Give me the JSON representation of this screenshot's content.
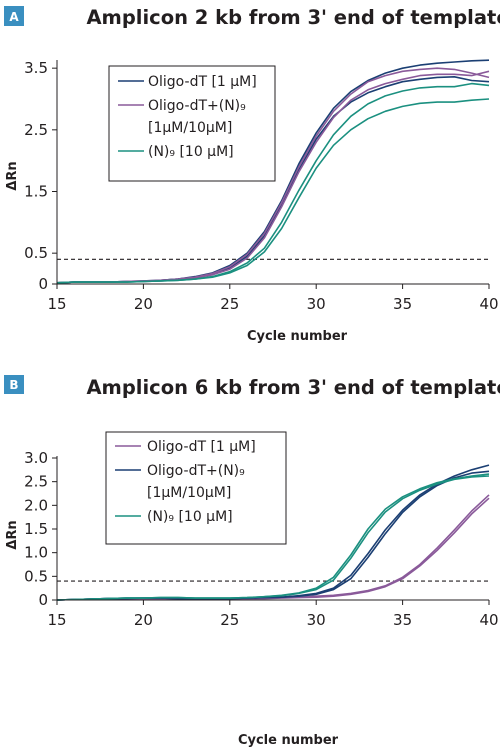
{
  "chart_data": [
    {
      "type": "line",
      "panel_label": "A",
      "title": "Amplicon 2 kb from 3' end of template",
      "xlabel": "Cycle number",
      "ylabel": "ΔRn",
      "xlim": [
        15,
        40
      ],
      "ylim": [
        0,
        3.6
      ],
      "xticks": [
        15,
        20,
        25,
        30,
        35,
        40
      ],
      "yticks": [
        0,
        0.5,
        1.5,
        2.5,
        3.5
      ],
      "yticklabels": [
        "0",
        "0.5",
        "1.5",
        "2.5",
        "3.5"
      ],
      "threshold": 0.4,
      "legend": {
        "position": "top-left",
        "entries": [
          {
            "lines": [
              "Oligo-dT [1 µM]"
            ],
            "color": "#1b3f73"
          },
          {
            "lines": [
              "Oligo-dT+(N)₉",
              "[1µM/10µM]"
            ],
            "color": "#8a5a9a"
          },
          {
            "lines": [
              "(N)₉ [10 µM]"
            ],
            "color": "#1b9080"
          }
        ]
      },
      "series": [
        {
          "name": "Oligo-dT [1 µM]",
          "color": "#1b3f73",
          "x": [
            15,
            16,
            17,
            18,
            19,
            20,
            21,
            22,
            23,
            24,
            25,
            26,
            27,
            28,
            29,
            30,
            31,
            32,
            33,
            34,
            35,
            36,
            37,
            38,
            39,
            40
          ],
          "y": [
            0.02,
            0.03,
            0.03,
            0.03,
            0.04,
            0.05,
            0.06,
            0.08,
            0.12,
            0.18,
            0.3,
            0.5,
            0.85,
            1.35,
            1.95,
            2.45,
            2.85,
            3.12,
            3.3,
            3.42,
            3.5,
            3.55,
            3.58,
            3.6,
            3.62,
            3.63
          ]
        },
        {
          "name": "Oligo-dT [1 µM]",
          "color": "#1b3f73",
          "x": [
            15,
            16,
            17,
            18,
            19,
            20,
            21,
            22,
            23,
            24,
            25,
            26,
            27,
            28,
            29,
            30,
            31,
            32,
            33,
            34,
            35,
            36,
            37,
            38,
            39,
            40
          ],
          "y": [
            0.02,
            0.03,
            0.03,
            0.03,
            0.04,
            0.04,
            0.06,
            0.08,
            0.11,
            0.16,
            0.26,
            0.45,
            0.78,
            1.28,
            1.85,
            2.35,
            2.72,
            2.95,
            3.1,
            3.2,
            3.28,
            3.32,
            3.35,
            3.36,
            3.3,
            3.28
          ]
        },
        {
          "name": "Oligo-dT+(N)₉ [1µM/10µM]",
          "color": "#8a5a9a",
          "x": [
            15,
            16,
            17,
            18,
            19,
            20,
            21,
            22,
            23,
            24,
            25,
            26,
            27,
            28,
            29,
            30,
            31,
            32,
            33,
            34,
            35,
            36,
            37,
            38,
            39,
            40
          ],
          "y": [
            0.02,
            0.03,
            0.03,
            0.03,
            0.04,
            0.04,
            0.05,
            0.07,
            0.1,
            0.15,
            0.24,
            0.42,
            0.75,
            1.25,
            1.82,
            2.3,
            2.7,
            2.98,
            3.15,
            3.25,
            3.32,
            3.38,
            3.4,
            3.4,
            3.38,
            3.45
          ]
        },
        {
          "name": "Oligo-dT+(N)₉ [1µM/10µM]",
          "color": "#8a5a9a",
          "x": [
            15,
            16,
            17,
            18,
            19,
            20,
            21,
            22,
            23,
            24,
            25,
            26,
            27,
            28,
            29,
            30,
            31,
            32,
            33,
            34,
            35,
            36,
            37,
            38,
            39,
            40
          ],
          "y": [
            0.02,
            0.03,
            0.03,
            0.03,
            0.04,
            0.05,
            0.06,
            0.08,
            0.11,
            0.17,
            0.28,
            0.48,
            0.82,
            1.32,
            1.9,
            2.4,
            2.8,
            3.08,
            3.28,
            3.38,
            3.45,
            3.48,
            3.5,
            3.48,
            3.42,
            3.35
          ]
        },
        {
          "name": "(N)₉ [10 µM]",
          "color": "#1b9080",
          "x": [
            15,
            16,
            17,
            18,
            19,
            20,
            21,
            22,
            23,
            24,
            25,
            26,
            27,
            28,
            29,
            30,
            31,
            32,
            33,
            34,
            35,
            36,
            37,
            38,
            39,
            40
          ],
          "y": [
            0.02,
            0.03,
            0.03,
            0.03,
            0.03,
            0.04,
            0.05,
            0.06,
            0.08,
            0.12,
            0.2,
            0.34,
            0.58,
            1.0,
            1.52,
            2.0,
            2.42,
            2.72,
            2.92,
            3.05,
            3.13,
            3.18,
            3.2,
            3.2,
            3.25,
            3.22
          ]
        },
        {
          "name": "(N)₉ [10 µM]",
          "color": "#1b9080",
          "x": [
            15,
            16,
            17,
            18,
            19,
            20,
            21,
            22,
            23,
            24,
            25,
            26,
            27,
            28,
            29,
            30,
            31,
            32,
            33,
            34,
            35,
            36,
            37,
            38,
            39,
            40
          ],
          "y": [
            0.02,
            0.03,
            0.03,
            0.03,
            0.03,
            0.04,
            0.05,
            0.06,
            0.08,
            0.11,
            0.18,
            0.3,
            0.52,
            0.9,
            1.4,
            1.88,
            2.25,
            2.5,
            2.68,
            2.8,
            2.88,
            2.93,
            2.95,
            2.95,
            2.98,
            3.0
          ]
        }
      ]
    },
    {
      "type": "line",
      "panel_label": "B",
      "title": "Amplicon 6 kb from 3' end of template",
      "xlabel": "Cycle number",
      "ylabel": "ΔRn",
      "xlim": [
        15,
        40
      ],
      "ylim": [
        0,
        3.0
      ],
      "xticks": [
        15,
        20,
        25,
        30,
        35,
        40
      ],
      "yticks": [
        0,
        0.5,
        1.0,
        1.5,
        2.0,
        2.5,
        3.0
      ],
      "yticklabels": [
        "0",
        "0.5",
        "1.0",
        "1.5",
        "2.0",
        "2.5",
        "3.0"
      ],
      "threshold": 0.4,
      "legend": {
        "position": "top-left",
        "entries": [
          {
            "lines": [
              "Oligo-dT [1 µM]"
            ],
            "color": "#8a5a9a"
          },
          {
            "lines": [
              "Oligo-dT+(N)₉",
              "[1µM/10µM]"
            ],
            "color": "#1b3f73"
          },
          {
            "lines": [
              "(N)₉ [10 µM]"
            ],
            "color": "#1b9080"
          }
        ]
      },
      "series": [
        {
          "name": "Oligo-dT [1 µM]",
          "color": "#8a5a9a",
          "x": [
            15,
            16,
            17,
            18,
            19,
            20,
            21,
            22,
            23,
            24,
            25,
            26,
            27,
            28,
            29,
            30,
            31,
            32,
            33,
            34,
            35,
            36,
            37,
            38,
            39,
            40
          ],
          "y": [
            0.0,
            0.01,
            0.02,
            0.03,
            0.03,
            0.03,
            0.03,
            0.03,
            0.03,
            0.03,
            0.03,
            0.03,
            0.04,
            0.05,
            0.06,
            0.08,
            0.1,
            0.14,
            0.2,
            0.3,
            0.48,
            0.75,
            1.1,
            1.48,
            1.88,
            2.22
          ]
        },
        {
          "name": "Oligo-dT [1 µM]",
          "color": "#8a5a9a",
          "x": [
            15,
            16,
            17,
            18,
            19,
            20,
            21,
            22,
            23,
            24,
            25,
            26,
            27,
            28,
            29,
            30,
            31,
            32,
            33,
            34,
            35,
            36,
            37,
            38,
            39,
            40
          ],
          "y": [
            0.0,
            0.01,
            0.02,
            0.02,
            0.03,
            0.03,
            0.03,
            0.03,
            0.03,
            0.03,
            0.03,
            0.03,
            0.03,
            0.04,
            0.05,
            0.06,
            0.08,
            0.12,
            0.18,
            0.28,
            0.45,
            0.72,
            1.05,
            1.42,
            1.82,
            2.15
          ]
        },
        {
          "name": "Oligo-dT+(N)₉ [1µM/10µM]",
          "color": "#1b3f73",
          "x": [
            15,
            16,
            17,
            18,
            19,
            20,
            21,
            22,
            23,
            24,
            25,
            26,
            27,
            28,
            29,
            30,
            31,
            32,
            33,
            34,
            35,
            36,
            37,
            38,
            39,
            40
          ],
          "y": [
            0.0,
            0.01,
            0.02,
            0.03,
            0.04,
            0.04,
            0.04,
            0.03,
            0.03,
            0.03,
            0.03,
            0.04,
            0.05,
            0.06,
            0.09,
            0.14,
            0.25,
            0.52,
            0.98,
            1.48,
            1.9,
            2.22,
            2.45,
            2.62,
            2.75,
            2.85
          ]
        },
        {
          "name": "Oligo-dT+(N)₉ [1µM/10µM]",
          "color": "#1b3f73",
          "x": [
            15,
            16,
            17,
            18,
            19,
            20,
            21,
            22,
            23,
            24,
            25,
            26,
            27,
            28,
            29,
            30,
            31,
            32,
            33,
            34,
            35,
            36,
            37,
            38,
            39,
            40
          ],
          "y": [
            0.0,
            0.01,
            0.02,
            0.03,
            0.03,
            0.04,
            0.04,
            0.03,
            0.03,
            0.03,
            0.03,
            0.04,
            0.05,
            0.06,
            0.08,
            0.12,
            0.22,
            0.45,
            0.9,
            1.4,
            1.85,
            2.18,
            2.42,
            2.58,
            2.68,
            2.72
          ]
        },
        {
          "name": "(N)₉ [10 µM]",
          "color": "#1b9080",
          "x": [
            15,
            16,
            17,
            18,
            19,
            20,
            21,
            22,
            23,
            24,
            25,
            26,
            27,
            28,
            29,
            30,
            31,
            32,
            33,
            34,
            35,
            36,
            37,
            38,
            39,
            40
          ],
          "y": [
            0.0,
            0.01,
            0.02,
            0.03,
            0.04,
            0.04,
            0.05,
            0.05,
            0.04,
            0.04,
            0.04,
            0.05,
            0.07,
            0.1,
            0.15,
            0.25,
            0.48,
            0.95,
            1.5,
            1.92,
            2.18,
            2.35,
            2.48,
            2.56,
            2.62,
            2.66
          ]
        },
        {
          "name": "(N)₉ [10 µM]",
          "color": "#1b9080",
          "x": [
            15,
            16,
            17,
            18,
            19,
            20,
            21,
            22,
            23,
            24,
            25,
            26,
            27,
            28,
            29,
            30,
            31,
            32,
            33,
            34,
            35,
            36,
            37,
            38,
            39,
            40
          ],
          "y": [
            0.0,
            0.01,
            0.02,
            0.03,
            0.04,
            0.04,
            0.05,
            0.05,
            0.04,
            0.04,
            0.04,
            0.05,
            0.07,
            0.09,
            0.14,
            0.22,
            0.42,
            0.88,
            1.42,
            1.86,
            2.14,
            2.32,
            2.45,
            2.55,
            2.6,
            2.62
          ]
        }
      ]
    }
  ]
}
